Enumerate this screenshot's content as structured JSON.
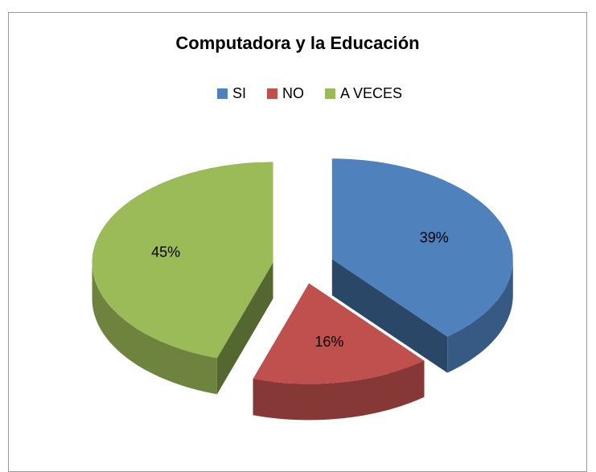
{
  "chart_data": {
    "type": "pie",
    "title": "Computadora y la Educación",
    "categories": [
      "SI",
      "NO",
      "A VECES"
    ],
    "values": [
      39,
      16,
      45
    ],
    "value_labels": [
      "39%",
      "16%",
      "45%"
    ],
    "colors": [
      "#4f81bd",
      "#c0504d",
      "#9bbb59"
    ],
    "legend": "top"
  }
}
